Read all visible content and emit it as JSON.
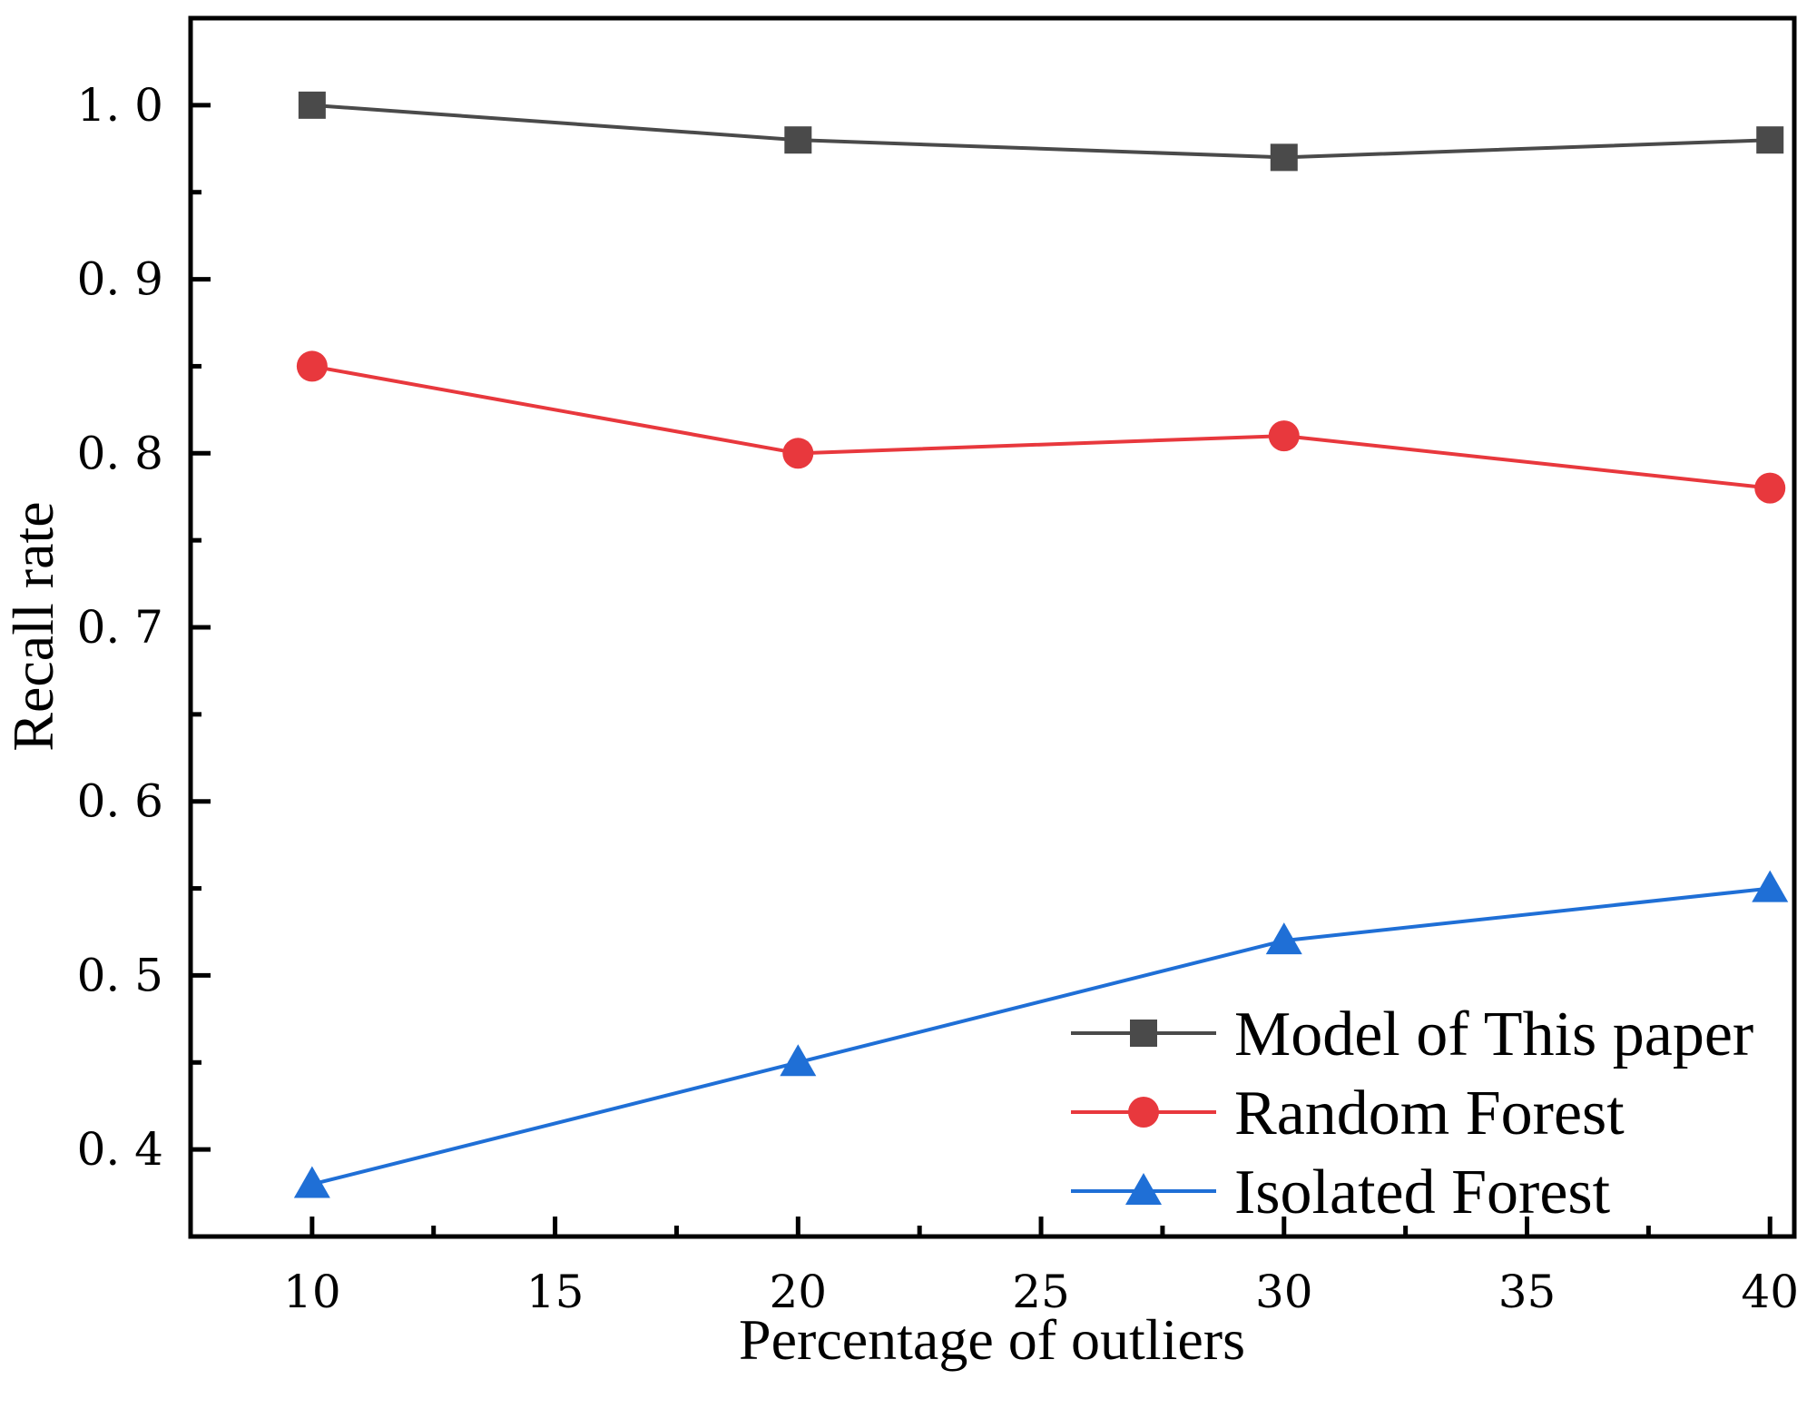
{
  "chart_data": {
    "type": "line",
    "title": "",
    "xlabel": "Percentage of outliers",
    "ylabel": "Recall rate",
    "x": [
      10,
      20,
      30,
      40
    ],
    "xlim": [
      7.5,
      40.5
    ],
    "ylim": [
      0.35,
      1.05
    ],
    "xticks": [
      10,
      15,
      20,
      25,
      30,
      35,
      40
    ],
    "xtick_labels": [
      "10",
      "15",
      "20",
      "25",
      "30",
      "35",
      "40"
    ],
    "yticks": [
      0.4,
      0.5,
      0.6,
      0.7,
      0.8,
      0.9,
      1.0
    ],
    "ytick_labels": [
      "0. 4",
      "0. 5",
      "0. 6",
      "0. 7",
      "0. 8",
      "0. 9",
      "1. 0"
    ],
    "grid": false,
    "legend_position": "bottom-right",
    "series": [
      {
        "name": "Model of This paper",
        "values": [
          1.0,
          0.98,
          0.97,
          0.98
        ],
        "color": "#4a4a4a",
        "marker": "square"
      },
      {
        "name": "Random Forest",
        "values": [
          0.85,
          0.8,
          0.81,
          0.78
        ],
        "color": "#e8383d",
        "marker": "circle"
      },
      {
        "name": "Isolated Forest",
        "values": [
          0.38,
          0.45,
          0.52,
          0.55
        ],
        "color": "#1f6fd6",
        "marker": "triangle"
      }
    ]
  }
}
